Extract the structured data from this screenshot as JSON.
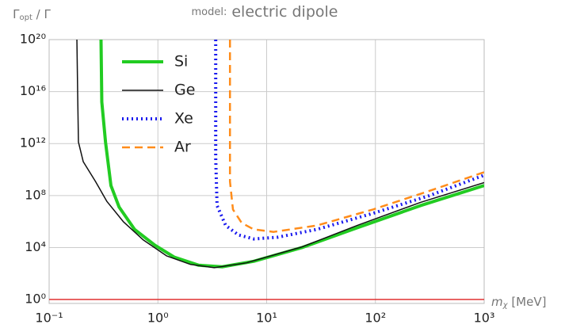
{
  "chart_data": {
    "type": "line",
    "title_prefix": "model:",
    "title": "electric dipole",
    "y_label": {
      "text": "Γ",
      "subscript": "opt",
      "suffix": " / Γ"
    },
    "x_label": {
      "text": "m",
      "subscript": "χ",
      "suffix": " [MeV]"
    },
    "xscale": "log",
    "yscale": "log",
    "grid": true,
    "legend": "upper left",
    "xlim": [
      0.1,
      1000
    ],
    "ylim": [
      0.5,
      1e+20
    ],
    "xticks": [
      {
        "value": 0.1,
        "label": "10⁻¹"
      },
      {
        "value": 1,
        "label": "10⁰"
      },
      {
        "value": 10,
        "label": "10¹"
      },
      {
        "value": 100,
        "label": "10²"
      },
      {
        "value": 1000,
        "label": "10³"
      }
    ],
    "yticks": [
      {
        "value": 1,
        "label": "10⁰"
      },
      {
        "value": 10000,
        "label": "10⁴"
      },
      {
        "value": 100000000,
        "label": "10⁸"
      },
      {
        "value": 1000000000000.0,
        "label": "10¹²"
      },
      {
        "value": 1e+16,
        "label": "10¹⁶"
      },
      {
        "value": 1e+20,
        "label": "10²⁰"
      }
    ],
    "hline": {
      "value": 1,
      "color": "#e03030"
    },
    "series": [
      {
        "name": "Si",
        "color": "#22cc22",
        "width": 4,
        "dash": "none",
        "x": [
          0.3,
          0.305,
          0.33,
          0.37,
          0.44,
          0.61,
          0.94,
          1.42,
          2.36,
          3.9,
          7.6,
          21,
          68,
          260,
          1000
        ],
        "values": [
          1e+20,
          1600000000000000.0,
          1300000000000.0,
          590000000.0,
          13000000.0,
          250000.0,
          15000.0,
          1800,
          440,
          330,
          870,
          9800,
          330000.0,
          17000000.0,
          590000000.0
        ]
      },
      {
        "name": "Ge",
        "color": "#111111",
        "width": 1.5,
        "dash": "none",
        "x": [
          0.18,
          0.183,
          0.186,
          0.206,
          0.267,
          0.34,
          0.48,
          0.73,
          1.2,
          2.0,
          3.3,
          6.5,
          21,
          68,
          260,
          1000
        ],
        "values": [
          1e+20,
          6300000000000000.0,
          1300000000000.0,
          40000000000.0,
          1200000000.0,
          35000000.0,
          1000000.0,
          40000.0,
          2300,
          500,
          280,
          660,
          11000.0,
          500000.0,
          30000000.0,
          1000000000.0
        ]
      },
      {
        "name": "Xe",
        "color": "#1a1aee",
        "width": 4,
        "dash": "2 4",
        "x": [
          3.4,
          3.4,
          3.5,
          4.2,
          5.5,
          7.6,
          12.6,
          29,
          95,
          309,
          1000
        ],
        "values": [
          1e+20,
          80000000000.0,
          17000000.0,
          500000.0,
          93000.0,
          46000.0,
          62000.0,
          250000.0,
          4300000.0,
          95000000.0,
          3700000000.0
        ]
      },
      {
        "name": "Ar",
        "color": "#ff8c1a",
        "width": 2.5,
        "dash": "10 6",
        "x": [
          4.6,
          4.6,
          4.9,
          5.9,
          7.6,
          11.6,
          29,
          95,
          309,
          1000
        ],
        "values": [
          1e+20,
          1200000000.0,
          8500000.0,
          780000.0,
          250000.0,
          160000.0,
          500000.0,
          8500000.0,
          220000000.0,
          6300000000.0
        ]
      }
    ]
  }
}
